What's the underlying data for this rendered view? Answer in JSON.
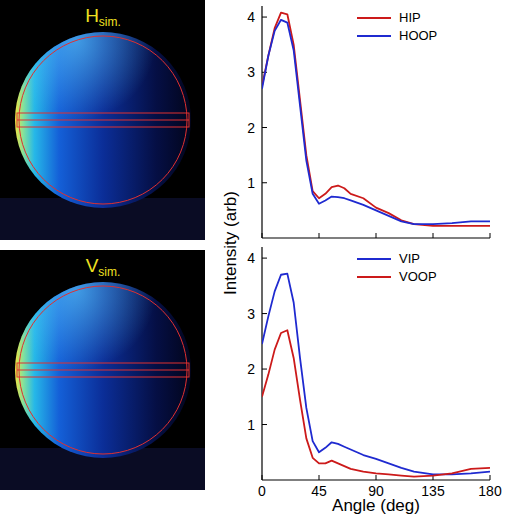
{
  "images": [
    {
      "label": "H",
      "label_sub": "sim."
    },
    {
      "label": "V",
      "label_sub": "sim."
    }
  ],
  "chart_data": [
    {
      "type": "line",
      "ylabel": "Intensity (arb)",
      "x": [
        0,
        5,
        10,
        15,
        20,
        25,
        30,
        35,
        40,
        45,
        50,
        55,
        60,
        65,
        70,
        80,
        90,
        100,
        110,
        120,
        135,
        150,
        165,
        180
      ],
      "series": [
        {
          "name": "HIP",
          "color": "#cc1a1a",
          "values": [
            2.75,
            3.3,
            3.8,
            4.08,
            4.05,
            3.5,
            2.5,
            1.5,
            0.85,
            0.72,
            0.8,
            0.92,
            0.95,
            0.9,
            0.8,
            0.72,
            0.55,
            0.45,
            0.32,
            0.25,
            0.22,
            0.22,
            0.22,
            0.22
          ]
        },
        {
          "name": "HOOP",
          "color": "#1f2ad0",
          "values": [
            2.7,
            3.3,
            3.75,
            3.95,
            3.9,
            3.4,
            2.4,
            1.4,
            0.8,
            0.62,
            0.68,
            0.75,
            0.74,
            0.72,
            0.68,
            0.6,
            0.5,
            0.4,
            0.3,
            0.25,
            0.25,
            0.27,
            0.3,
            0.3
          ]
        }
      ],
      "xlim": [
        0,
        180
      ],
      "ylim": [
        0,
        4.2
      ],
      "xticks": [
        0,
        45,
        90,
        135,
        180
      ],
      "yticks": [
        1,
        2,
        3,
        4
      ],
      "tick_labels": "y",
      "legend": "top-right"
    },
    {
      "type": "line",
      "xlabel": "Angle (deg)",
      "x": [
        0,
        5,
        10,
        15,
        20,
        25,
        30,
        35,
        40,
        45,
        50,
        55,
        60,
        65,
        70,
        80,
        90,
        100,
        110,
        120,
        135,
        150,
        165,
        180
      ],
      "series": [
        {
          "name": "VIP",
          "color": "#1f2ad0",
          "values": [
            2.45,
            2.95,
            3.4,
            3.7,
            3.72,
            3.2,
            2.2,
            1.3,
            0.7,
            0.5,
            0.58,
            0.68,
            0.65,
            0.6,
            0.55,
            0.45,
            0.38,
            0.3,
            0.22,
            0.15,
            0.1,
            0.1,
            0.12,
            0.15
          ]
        },
        {
          "name": "VOOP",
          "color": "#cc1a1a",
          "values": [
            1.5,
            1.9,
            2.35,
            2.65,
            2.7,
            2.2,
            1.45,
            0.75,
            0.4,
            0.3,
            0.3,
            0.35,
            0.3,
            0.25,
            0.2,
            0.15,
            0.12,
            0.1,
            0.08,
            0.06,
            0.08,
            0.12,
            0.2,
            0.22
          ]
        }
      ],
      "xlim": [
        0,
        180
      ],
      "ylim": [
        0,
        4.2
      ],
      "xticks": [
        0,
        45,
        90,
        135,
        180
      ],
      "yticks": [
        1,
        2,
        3,
        4
      ],
      "legend": "top-right"
    }
  ]
}
